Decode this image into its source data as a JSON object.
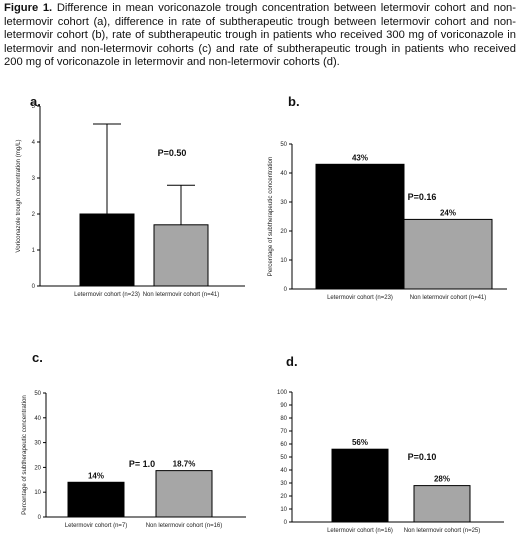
{
  "caption": {
    "label": "Figure 1.",
    "text": " Difference in mean voriconazole trough concentration between letermovir cohort and non-letermovir cohort (a), difference in rate of subtherapeutic trough between letermovir cohort and non-letermovir cohort (b),  rate of subtherapeutic trough in patients who received 300 mg of voriconazole in letermovir and non-letermovir cohorts (c) and rate of subtherapeutic trough in patients who received 200 mg  of voriconazole  in letermovir and non-letermovir cohorts (d)."
  },
  "colors": {
    "letermovir": "#000000",
    "non_letermovir": "#a6a6a6"
  },
  "chart_data": [
    {
      "id": "a",
      "panel_label": "a.",
      "type": "bar",
      "categories": [
        "Letermovir cohort (n=23)",
        "Non letermovir cohort (n=41)"
      ],
      "values": [
        2.0,
        1.7
      ],
      "error_upper": [
        4.5,
        2.8
      ],
      "ylabel": "Voriconazole trough concentration (mg/L)",
      "ylim": [
        0,
        5
      ],
      "yticks": [
        0,
        1,
        2,
        3,
        4,
        5
      ],
      "annotation": "P=0.50",
      "data_labels": []
    },
    {
      "id": "b",
      "panel_label": "b.",
      "type": "bar",
      "categories": [
        "Letermovir cohort (n=23)",
        "Non letermovir cohort (n=41)"
      ],
      "values": [
        43,
        24
      ],
      "ylabel": "Percentage of subtherapeutic concentration",
      "ylim": [
        0,
        50
      ],
      "yticks": [
        0,
        10,
        20,
        30,
        40,
        50
      ],
      "annotation": "P=0.16",
      "data_labels": [
        "43%",
        "24%"
      ]
    },
    {
      "id": "c",
      "panel_label": "c.",
      "type": "bar",
      "categories": [
        "Letermovir cohort (n=7)",
        "Non letermovir cohort (n=16)"
      ],
      "values": [
        14,
        18.7
      ],
      "ylabel": "Percentage of subtherapeutic concentration",
      "ylim": [
        0,
        50
      ],
      "yticks": [
        0,
        10,
        20,
        30,
        40,
        50
      ],
      "annotation": "P= 1.0",
      "data_labels": [
        "14%",
        "18.7%"
      ]
    },
    {
      "id": "d",
      "panel_label": "d.",
      "type": "bar",
      "categories": [
        "Letermovir cohort (n=16)",
        "Non letermovir cohort (n=25)"
      ],
      "values": [
        56,
        28
      ],
      "ylabel": "",
      "ylim": [
        0,
        100
      ],
      "yticks": [
        0,
        10,
        20,
        30,
        40,
        50,
        60,
        70,
        80,
        90,
        100
      ],
      "annotation": "P=0.10",
      "data_labels": [
        "56%",
        "28%"
      ]
    }
  ]
}
